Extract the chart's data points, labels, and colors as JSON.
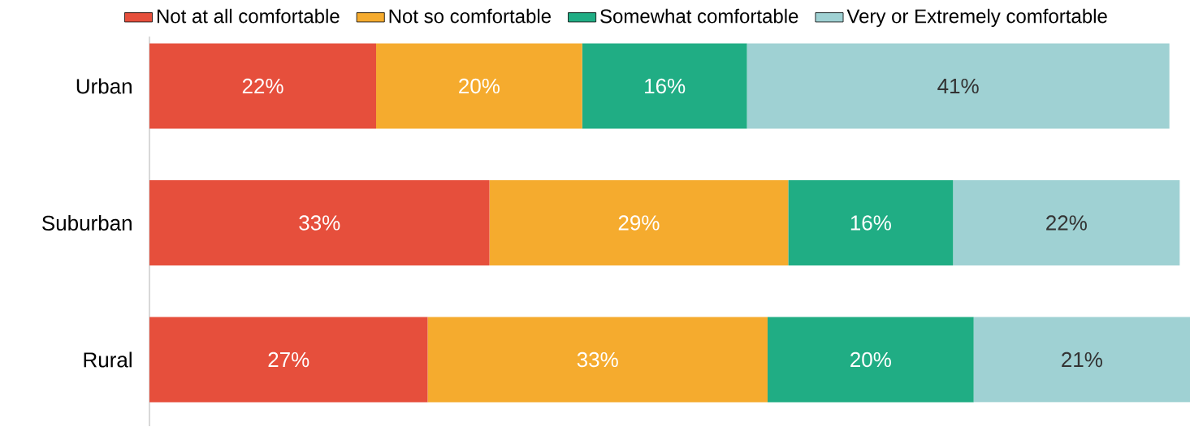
{
  "chart_data": {
    "type": "bar",
    "orientation": "horizontal",
    "stacked": true,
    "categories": [
      "Urban",
      "Suburban",
      "Rural"
    ],
    "series": [
      {
        "name": "Not at all comfortable",
        "color": "#e64f3c",
        "values": [
          22,
          33,
          27
        ],
        "value_labels": [
          "22%",
          "33%",
          "27%"
        ]
      },
      {
        "name": "Not so comfortable",
        "color": "#f5ab2e",
        "values": [
          20,
          29,
          33
        ],
        "value_labels": [
          "20%",
          "29%",
          "33%"
        ]
      },
      {
        "name": "Somewhat comfortable",
        "color": "#20ad84",
        "values": [
          16,
          16,
          20
        ],
        "value_labels": [
          "16%",
          "16%",
          "20%"
        ]
      },
      {
        "name": "Very or Extremely comfortable",
        "color": "#9fd1d3",
        "values": [
          41,
          22,
          21
        ],
        "value_labels": [
          "41%",
          "22%",
          "21%"
        ]
      }
    ],
    "legend": "top",
    "tick_labels": "y"
  }
}
